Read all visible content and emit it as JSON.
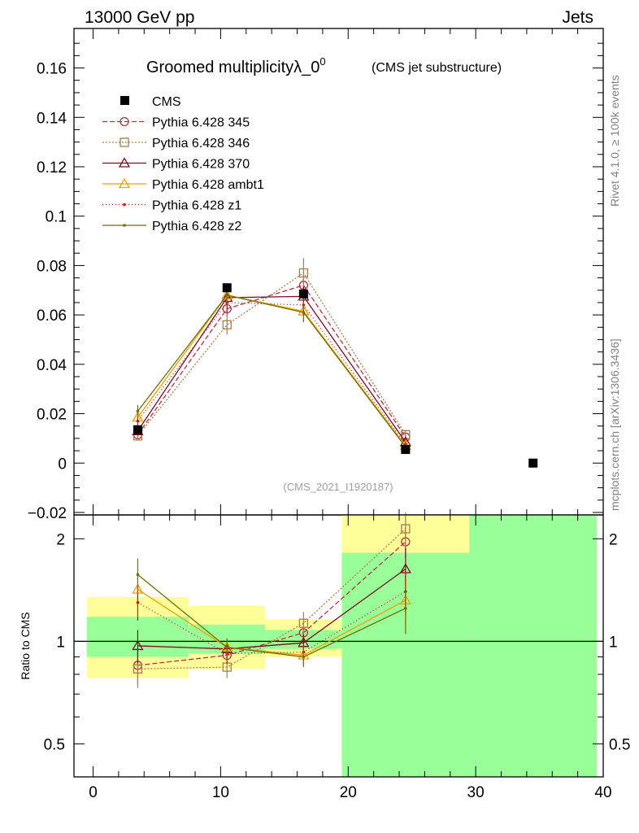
{
  "header": {
    "left": "13000 GeV pp",
    "right": "Jets"
  },
  "side_labels": {
    "upper": "Rivet 4.1.0, ≥ 100k events",
    "lower": "mcplots.cern.ch [arXiv:1306.3436]"
  },
  "chart_data": [
    {
      "type": "line",
      "title": "Groomed multiplicityλ_0",
      "title_superscript": "0",
      "subtitle": "(CMS jet substructure)",
      "analysis_label": "(CMS_2021_I1920187)",
      "xlim": [
        -1.5,
        40
      ],
      "ylim": [
        -0.021,
        0.176
      ],
      "yticks": [
        "−0.02",
        "0",
        "0.02",
        "0.04",
        "0.06",
        "0.08",
        "0.1",
        "0.12",
        "0.14",
        "0.16"
      ],
      "ytick_values": [
        -0.02,
        0,
        0.02,
        0.04,
        0.06,
        0.08,
        0.1,
        0.12,
        0.14,
        0.16
      ],
      "legend_position": "top-left",
      "data": {
        "name": "CMS",
        "color": "#000000",
        "x": [
          3.5,
          10.5,
          16.5,
          24.5,
          34.5
        ],
        "y": [
          0.0135,
          0.071,
          0.0685,
          0.0055,
          0.0
        ]
      },
      "series": [
        {
          "name": "Pythia 6.428 345",
          "color": "#b8303d",
          "dash": "6,3",
          "marker": "circle",
          "x": [
            3.5,
            10.5,
            16.5,
            24.5
          ],
          "y": [
            0.0115,
            0.0625,
            0.072,
            0.0105
          ],
          "err": [
            0.0012,
            0.003,
            0.004,
            0.0012
          ]
        },
        {
          "name": "Pythia 6.428 346",
          "color": "#a57f4c",
          "dash": "2,2",
          "marker": "square",
          "x": [
            3.5,
            10.5,
            16.5,
            24.5
          ],
          "y": [
            0.011,
            0.056,
            0.077,
            0.0115
          ],
          "err": [
            0.0012,
            0.004,
            0.006,
            0.0015
          ]
        },
        {
          "name": "Pythia 6.428 370",
          "color": "#7a0d1f",
          "dash": "",
          "marker": "triangle",
          "x": [
            3.5,
            10.5,
            16.5,
            24.5
          ],
          "y": [
            0.013,
            0.067,
            0.0675,
            0.0085
          ],
          "err": [
            0.0015,
            0.003,
            0.004,
            0.0012
          ]
        },
        {
          "name": "Pythia 6.428 ambt1",
          "color": "#f0a000",
          "dash": "",
          "marker": "triangle",
          "x": [
            3.5,
            10.5,
            16.5,
            24.5
          ],
          "y": [
            0.0185,
            0.068,
            0.0615,
            0.007
          ],
          "err": [
            0.002,
            0.004,
            0.004,
            0.001
          ]
        },
        {
          "name": "Pythia 6.428 z1",
          "color": "#c41a10",
          "dash": "1,3",
          "marker": "dot",
          "x": [
            3.5,
            10.5,
            16.5,
            24.5
          ],
          "y": [
            0.017,
            0.065,
            0.064,
            0.0075
          ],
          "err": [
            0.002,
            0.004,
            0.004,
            0.001
          ]
        },
        {
          "name": "Pythia 6.428 z2",
          "color": "#707000",
          "dash": "",
          "marker": "dot",
          "x": [
            3.5,
            10.5,
            16.5,
            24.5
          ],
          "y": [
            0.021,
            0.068,
            0.061,
            0.0065
          ],
          "err": [
            0.0025,
            0.004,
            0.004,
            0.001
          ]
        }
      ]
    },
    {
      "type": "line",
      "ylabel": "Ratio to CMS",
      "xlim": [
        -1.5,
        40
      ],
      "log_y": true,
      "ylim": [
        0.4,
        2.35
      ],
      "yticks": [
        "0.5",
        "1",
        "2"
      ],
      "ytick_values": [
        0.5,
        1,
        2
      ],
      "xticks": [
        "0",
        "10",
        "20",
        "30",
        "40"
      ],
      "xtick_values": [
        0,
        10,
        20,
        30,
        40
      ],
      "reference_line": 1,
      "uncertainty_bands": [
        {
          "x": [
            -0.5,
            7.5
          ],
          "stat_sys": [
            0.78,
            1.35
          ],
          "stat": [
            0.9,
            1.18
          ]
        },
        {
          "x": [
            7.5,
            13.5
          ],
          "stat_sys": [
            0.83,
            1.27
          ],
          "stat": [
            0.92,
            1.12
          ]
        },
        {
          "x": [
            13.5,
            19.5
          ],
          "stat_sys": [
            0.9,
            1.16
          ],
          "stat": [
            0.95,
            1.08
          ]
        },
        {
          "x": [
            19.5,
            29.5
          ],
          "stat_sys": [
            0.4,
            2.35
          ],
          "stat": [
            0.4,
            1.82
          ]
        },
        {
          "x": [
            29.5,
            39.5
          ],
          "stat_sys": [
            0.4,
            2.35
          ],
          "stat": [
            0.4,
            2.35
          ]
        }
      ],
      "band_colors": {
        "stat_sys": "#ffff99",
        "stat": "#99ff99"
      },
      "series": [
        {
          "name": "Pythia 6.428 345",
          "x": [
            3.5,
            10.5,
            16.5,
            24.5
          ],
          "y": [
            0.85,
            0.91,
            1.06,
            1.96
          ],
          "err": [
            0.1,
            0.05,
            0.05,
            0.2
          ]
        },
        {
          "name": "Pythia 6.428 346",
          "x": [
            3.5,
            10.5,
            16.5,
            24.5
          ],
          "y": [
            0.83,
            0.84,
            1.13,
            2.14
          ],
          "err": [
            0.1,
            0.06,
            0.09,
            0.25
          ]
        },
        {
          "name": "Pythia 6.428 370",
          "x": [
            3.5,
            10.5,
            16.5,
            24.5
          ],
          "y": [
            0.97,
            0.95,
            0.99,
            1.63
          ],
          "err": [
            0.11,
            0.05,
            0.06,
            0.25
          ]
        },
        {
          "name": "Pythia 6.428 ambt1",
          "x": [
            3.5,
            10.5,
            16.5,
            24.5
          ],
          "y": [
            1.42,
            0.96,
            0.91,
            1.32
          ],
          "err": [
            0.15,
            0.06,
            0.06,
            0.2
          ]
        },
        {
          "name": "Pythia 6.428 z1",
          "x": [
            3.5,
            10.5,
            16.5,
            24.5
          ],
          "y": [
            1.3,
            0.92,
            0.93,
            1.4
          ],
          "err": [
            0.15,
            0.06,
            0.06,
            0.2
          ]
        },
        {
          "name": "Pythia 6.428 z2",
          "x": [
            3.5,
            10.5,
            16.5,
            24.5
          ],
          "y": [
            1.57,
            0.96,
            0.9,
            1.25
          ],
          "err": [
            0.18,
            0.06,
            0.06,
            0.2
          ]
        }
      ]
    }
  ]
}
